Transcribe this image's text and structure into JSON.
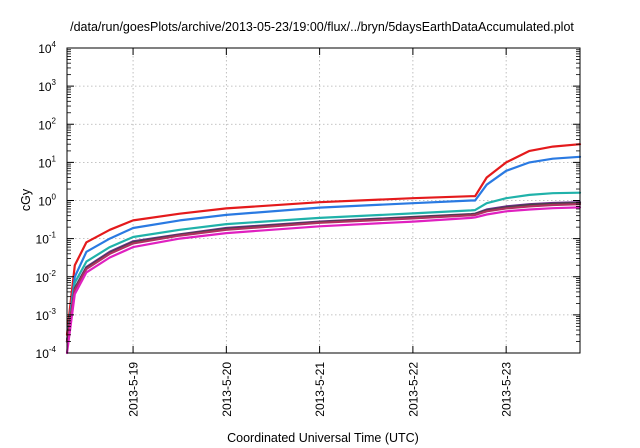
{
  "chart_data": {
    "type": "line",
    "title": "/data/run/goesPlots/archive/2013-05-23/19:00/flux/../bryn/5daysEarthDataAccumulated.plot",
    "xlabel": "Coordinated Universal Time (UTC)",
    "ylabel": "cGy",
    "y_scale": "log",
    "xlim": [
      "2013-05-18T07:00",
      "2013-05-23T19:00"
    ],
    "ylim": [
      0.0001,
      10000
    ],
    "grid": true,
    "legend": "none",
    "x_ticks": [
      "2013-5-19",
      "2013-5-20",
      "2013-5-21",
      "2013-5-22",
      "2013-5-23"
    ],
    "y_ticks": [
      {
        "base": "10",
        "exp": "-4"
      },
      {
        "base": "10",
        "exp": "-3"
      },
      {
        "base": "10",
        "exp": "-2"
      },
      {
        "base": "10",
        "exp": "-1"
      },
      {
        "base": "10",
        "exp": "0"
      },
      {
        "base": "10",
        "exp": "1"
      },
      {
        "base": "10",
        "exp": "2"
      },
      {
        "base": "10",
        "exp": "3"
      },
      {
        "base": "10",
        "exp": "4"
      }
    ],
    "x": [
      "2013-05-18T07:00",
      "2013-05-18T09:00",
      "2013-05-18T12:00",
      "2013-05-18T18:00",
      "2013-05-19T00:00",
      "2013-05-19T12:00",
      "2013-05-20T00:00",
      "2013-05-21T00:00",
      "2013-05-22T00:00",
      "2013-05-22T15:00",
      "2013-05-22T16:00",
      "2013-05-22T19:00",
      "2013-05-23T00:00",
      "2013-05-23T06:00",
      "2013-05-23T12:00",
      "2013-05-23T19:00"
    ],
    "series": [
      {
        "color": "#e41a1c",
        "values": [
          0.0003,
          0.02,
          0.08,
          0.17,
          0.3,
          0.45,
          0.62,
          0.9,
          1.15,
          1.3,
          1.3,
          4,
          10,
          20,
          26,
          30
        ]
      },
      {
        "color": "#2a7ae2",
        "values": [
          0.0002,
          0.01,
          0.045,
          0.1,
          0.19,
          0.3,
          0.42,
          0.65,
          0.85,
          1.0,
          1.0,
          2.6,
          6,
          10,
          12.5,
          14
        ]
      },
      {
        "color": "#20b2aa",
        "values": [
          0.0002,
          0.007,
          0.025,
          0.06,
          0.11,
          0.17,
          0.24,
          0.35,
          0.46,
          0.55,
          0.56,
          0.85,
          1.15,
          1.4,
          1.55,
          1.6
        ]
      },
      {
        "color": "#6a2a8a",
        "values": [
          0.0002,
          0.005,
          0.018,
          0.045,
          0.085,
          0.13,
          0.19,
          0.28,
          0.37,
          0.44,
          0.45,
          0.58,
          0.7,
          0.8,
          0.86,
          0.9
        ]
      },
      {
        "color": "#444444",
        "values": [
          0.0002,
          0.0048,
          0.017,
          0.042,
          0.08,
          0.125,
          0.18,
          0.27,
          0.36,
          0.43,
          0.44,
          0.55,
          0.66,
          0.76,
          0.82,
          0.86
        ]
      },
      {
        "color": "#b03060",
        "values": [
          0.0002,
          0.0045,
          0.016,
          0.04,
          0.075,
          0.12,
          0.17,
          0.26,
          0.34,
          0.41,
          0.42,
          0.52,
          0.62,
          0.7,
          0.76,
          0.8
        ]
      },
      {
        "color": "#e020c0",
        "values": [
          0.0001,
          0.0035,
          0.013,
          0.032,
          0.06,
          0.1,
          0.14,
          0.21,
          0.28,
          0.35,
          0.36,
          0.43,
          0.52,
          0.58,
          0.63,
          0.66
        ]
      }
    ]
  }
}
